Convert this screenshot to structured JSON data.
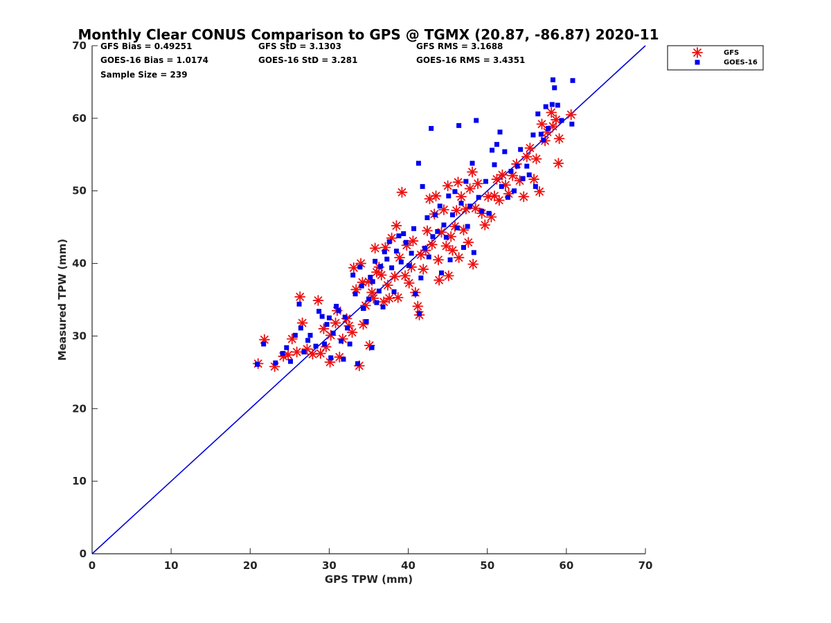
{
  "chart_data": {
    "type": "scatter",
    "title": "Monthly Clear CONUS Comparison to GPS @ TGMX (20.87, -86.87) 2020-11",
    "xlabel": "GPS TPW (mm)",
    "ylabel": "Measured TPW (mm)",
    "xlim": [
      0,
      70
    ],
    "ylim": [
      0,
      70
    ],
    "xticks": [
      0,
      10,
      20,
      30,
      40,
      50,
      60,
      70
    ],
    "yticks": [
      0,
      10,
      20,
      30,
      40,
      50,
      60,
      70
    ],
    "legend_position": "top-right (outside)",
    "stats": {
      "gfs_bias": "GFS Bias = 0.49251",
      "goes_bias": "GOES-16 Bias = 1.0174",
      "sample_size": "Sample Size = 239",
      "gfs_std": "GFS StD = 3.1303",
      "goes_std": "GOES-16 StD = 3.281",
      "gfs_rms": "GFS RMS = 3.1688",
      "goes_rms": "GOES-16 RMS = 3.4351"
    },
    "reference_line": {
      "name": "1:1 line",
      "x": [
        0,
        70
      ],
      "y": [
        0,
        70
      ],
      "color": "#0000dd"
    },
    "series": [
      {
        "name": "GFS",
        "marker": "asterisk",
        "color": "#ee1111",
        "points": [
          [
            21,
            26.2
          ],
          [
            21.8,
            29.5
          ],
          [
            23.1,
            25.8
          ],
          [
            24.2,
            27.2
          ],
          [
            24.8,
            27.4
          ],
          [
            25.3,
            29.6
          ],
          [
            25.9,
            27.8
          ],
          [
            26.3,
            35.4
          ],
          [
            26.6,
            31.8
          ],
          [
            27.2,
            28.2
          ],
          [
            27.9,
            27.5
          ],
          [
            28.6,
            34.9
          ],
          [
            28.9,
            27.6
          ],
          [
            29.3,
            31
          ],
          [
            29.6,
            28.5
          ],
          [
            30.1,
            26.4
          ],
          [
            30.2,
            30.1
          ],
          [
            30.8,
            31.8
          ],
          [
            31,
            33.5
          ],
          [
            31.3,
            27.1
          ],
          [
            31.7,
            29.6
          ],
          [
            32.2,
            32.4
          ],
          [
            32.5,
            31.4
          ],
          [
            32.9,
            30.5
          ],
          [
            33.1,
            39.4
          ],
          [
            33.4,
            36.4
          ],
          [
            33.8,
            25.9
          ],
          [
            34,
            40
          ],
          [
            34.2,
            37.4
          ],
          [
            34.3,
            31.6
          ],
          [
            34.6,
            34.2
          ],
          [
            35,
            37.5
          ],
          [
            35.1,
            28.7
          ],
          [
            35.4,
            36
          ],
          [
            35.6,
            35.2
          ],
          [
            35.8,
            42.1
          ],
          [
            36,
            38.8
          ],
          [
            36.3,
            39.5
          ],
          [
            36.6,
            38.4
          ],
          [
            36.9,
            34.7
          ],
          [
            37.1,
            42.2
          ],
          [
            37.4,
            37
          ],
          [
            37.6,
            35.2
          ],
          [
            37.9,
            43.5
          ],
          [
            38.3,
            38.2
          ],
          [
            38.5,
            45.2
          ],
          [
            38.7,
            35.3
          ],
          [
            38.9,
            40.8
          ],
          [
            39.2,
            49.8
          ],
          [
            39.6,
            38.3
          ],
          [
            39.8,
            42.5
          ],
          [
            40.1,
            37.3
          ],
          [
            40.4,
            39.5
          ],
          [
            40.6,
            43.1
          ],
          [
            40.9,
            36
          ],
          [
            41.2,
            34.1
          ],
          [
            41.4,
            32.9
          ],
          [
            41.6,
            41.2
          ],
          [
            41.9,
            39.2
          ],
          [
            42.2,
            41.8
          ],
          [
            42.4,
            44.5
          ],
          [
            42.7,
            48.9
          ],
          [
            43,
            42.6
          ],
          [
            43.3,
            46.8
          ],
          [
            43.5,
            49.3
          ],
          [
            43.8,
            40.5
          ],
          [
            43.9,
            37.7
          ],
          [
            44.2,
            44.3
          ],
          [
            44.5,
            47.4
          ],
          [
            44.8,
            42.4
          ],
          [
            45,
            50.7
          ],
          [
            45.1,
            38.3
          ],
          [
            45.4,
            43.7
          ],
          [
            45.6,
            41.8
          ],
          [
            45.9,
            45.1
          ],
          [
            46.1,
            47.3
          ],
          [
            46.3,
            51.2
          ],
          [
            46.4,
            40.8
          ],
          [
            46.7,
            49.2
          ],
          [
            47,
            44.6
          ],
          [
            47.3,
            47.5
          ],
          [
            47.6,
            42.9
          ],
          [
            47.8,
            50.3
          ],
          [
            48.1,
            52.6
          ],
          [
            48.2,
            39.9
          ],
          [
            48.5,
            47.6
          ],
          [
            48.8,
            51
          ],
          [
            49.3,
            46.9
          ],
          [
            49.7,
            45.3
          ],
          [
            50.1,
            49.2
          ],
          [
            50.5,
            46.4
          ],
          [
            50.9,
            49.3
          ],
          [
            51.2,
            51.6
          ],
          [
            51.5,
            48.7
          ],
          [
            51.9,
            52.2
          ],
          [
            52.3,
            50.8
          ],
          [
            52.7,
            49.6
          ],
          [
            53.2,
            52.1
          ],
          [
            53.7,
            53.7
          ],
          [
            54.1,
            51.4
          ],
          [
            54.6,
            49.2
          ],
          [
            55,
            54.7
          ],
          [
            55.4,
            55.9
          ],
          [
            55.9,
            51.6
          ],
          [
            56.2,
            54.4
          ],
          [
            56.6,
            49.9
          ],
          [
            56.9,
            59.2
          ],
          [
            57.3,
            56.9
          ],
          [
            57.6,
            58.1
          ],
          [
            58.1,
            60.8
          ],
          [
            58.3,
            58.9
          ],
          [
            58.7,
            59.8
          ],
          [
            59.1,
            57.2
          ],
          [
            59,
            53.8
          ],
          [
            60.6,
            60.5
          ]
        ]
      },
      {
        "name": "GOES-16",
        "marker": "square",
        "color": "#0000ee",
        "points": [
          [
            20.9,
            26.1
          ],
          [
            21.7,
            28.9
          ],
          [
            23.2,
            26.3
          ],
          [
            24.1,
            27.6
          ],
          [
            24.6,
            28.4
          ],
          [
            25.1,
            26.5
          ],
          [
            25.7,
            30.1
          ],
          [
            26.2,
            34.4
          ],
          [
            26.4,
            31.1
          ],
          [
            26.8,
            27.8
          ],
          [
            27.3,
            29.4
          ],
          [
            27.6,
            30.1
          ],
          [
            28.3,
            28.6
          ],
          [
            28.7,
            33.4
          ],
          [
            29.1,
            32.7
          ],
          [
            29.4,
            28.9
          ],
          [
            29.7,
            31.6
          ],
          [
            30,
            32.5
          ],
          [
            30.2,
            27
          ],
          [
            30.5,
            30.4
          ],
          [
            30.9,
            34.1
          ],
          [
            31.2,
            33.5
          ],
          [
            31.5,
            29.3
          ],
          [
            31.8,
            26.8
          ],
          [
            32,
            32.6
          ],
          [
            32.3,
            31.1
          ],
          [
            32.6,
            28.9
          ],
          [
            33,
            38.4
          ],
          [
            33.3,
            35.8
          ],
          [
            33.6,
            26.2
          ],
          [
            33.9,
            39.5
          ],
          [
            34.1,
            36.9
          ],
          [
            34.3,
            33.8
          ],
          [
            34.7,
            32
          ],
          [
            35,
            35.1
          ],
          [
            35.2,
            38.1
          ],
          [
            35.4,
            28.4
          ],
          [
            35.5,
            37.5
          ],
          [
            35.8,
            40.3
          ],
          [
            36,
            34.6
          ],
          [
            36.3,
            36.2
          ],
          [
            36.5,
            39.6
          ],
          [
            36.8,
            34
          ],
          [
            37,
            41.6
          ],
          [
            37.3,
            40.6
          ],
          [
            37.6,
            43
          ],
          [
            37.9,
            39.4
          ],
          [
            38.2,
            36.1
          ],
          [
            38.5,
            41.7
          ],
          [
            38.8,
            43.8
          ],
          [
            39.1,
            40.2
          ],
          [
            39.4,
            44.1
          ],
          [
            39.7,
            42.9
          ],
          [
            40.1,
            39.7
          ],
          [
            40.4,
            41.4
          ],
          [
            40.7,
            44.8
          ],
          [
            40.9,
            35.8
          ],
          [
            41.3,
            53.8
          ],
          [
            41.4,
            33.1
          ],
          [
            41.6,
            38
          ],
          [
            41.8,
            50.6
          ],
          [
            42.1,
            42.1
          ],
          [
            42.4,
            46.3
          ],
          [
            42.6,
            40.9
          ],
          [
            42.9,
            58.6
          ],
          [
            43.1,
            43.7
          ],
          [
            43.4,
            46.7
          ],
          [
            43.7,
            44.4
          ],
          [
            44,
            47.9
          ],
          [
            44.2,
            38.7
          ],
          [
            44.5,
            45.3
          ],
          [
            44.8,
            43.6
          ],
          [
            45.1,
            49.3
          ],
          [
            45.3,
            40.5
          ],
          [
            45.6,
            46.7
          ],
          [
            45.9,
            49.9
          ],
          [
            46.2,
            44.9
          ],
          [
            46.4,
            59
          ],
          [
            46.7,
            48.3
          ],
          [
            47,
            42.2
          ],
          [
            47.3,
            51.3
          ],
          [
            47.5,
            45.1
          ],
          [
            47.8,
            47.9
          ],
          [
            48.1,
            53.8
          ],
          [
            48.3,
            41.5
          ],
          [
            48.6,
            59.7
          ],
          [
            48.9,
            49.1
          ],
          [
            49.3,
            47.2
          ],
          [
            49.8,
            51.3
          ],
          [
            50.2,
            46.9
          ],
          [
            50.6,
            55.6
          ],
          [
            50.9,
            53.6
          ],
          [
            51.2,
            56.4
          ],
          [
            51.6,
            58.1
          ],
          [
            51.8,
            50.6
          ],
          [
            52.2,
            55.4
          ],
          [
            52.6,
            49.1
          ],
          [
            53,
            52.7
          ],
          [
            53.4,
            50
          ],
          [
            53.8,
            53.4
          ],
          [
            54.2,
            55.7
          ],
          [
            54.5,
            51.7
          ],
          [
            55,
            53.4
          ],
          [
            55.3,
            52.2
          ],
          [
            55.8,
            57.7
          ],
          [
            56.1,
            50.6
          ],
          [
            56.4,
            60.6
          ],
          [
            56.8,
            57.8
          ],
          [
            57.1,
            57
          ],
          [
            57.4,
            61.6
          ],
          [
            57.7,
            58.6
          ],
          [
            58.2,
            61.9
          ],
          [
            58.3,
            65.3
          ],
          [
            58.5,
            64.2
          ],
          [
            58.9,
            61.8
          ],
          [
            59.4,
            59.7
          ],
          [
            60.7,
            59.2
          ],
          [
            60.8,
            65.2
          ]
        ]
      }
    ]
  }
}
